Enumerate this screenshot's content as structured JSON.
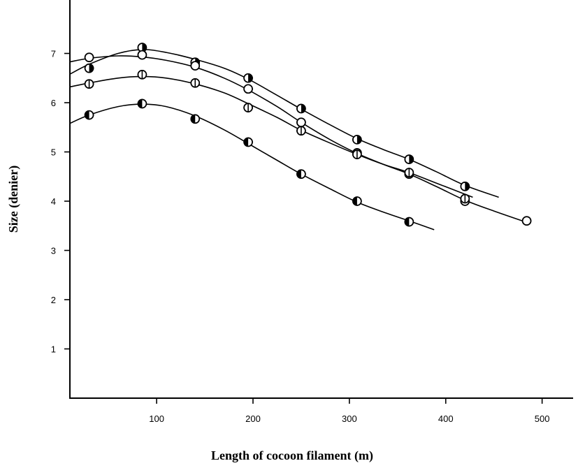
{
  "chart_data": {
    "type": "line",
    "xlabel": "Length of cocoon filament (m)",
    "ylabel": "Size (denier)",
    "xlim": [
      10,
      530
    ],
    "ylim": [
      0,
      8
    ],
    "xticks": [
      100,
      200,
      300,
      400,
      500
    ],
    "yticks": [
      1,
      2,
      3,
      4,
      5,
      6,
      7
    ],
    "grid": false,
    "series": [
      {
        "marker": "right-half-filled",
        "x": [
          30,
          85,
          140,
          195,
          250,
          308,
          362,
          420
        ],
        "y": [
          6.7,
          7.12,
          6.82,
          6.5,
          5.88,
          5.25,
          4.85,
          4.3
        ],
        "curve_x": [
          10,
          30,
          60,
          85,
          110,
          140,
          170,
          195,
          225,
          250,
          280,
          308,
          335,
          362,
          390,
          420,
          455
        ],
        "curve_y": [
          6.58,
          6.78,
          7.0,
          7.08,
          7.02,
          6.88,
          6.7,
          6.48,
          6.15,
          5.87,
          5.55,
          5.27,
          5.05,
          4.85,
          4.6,
          4.32,
          4.08
        ]
      },
      {
        "marker": "open-circle",
        "x": [
          30,
          85,
          140,
          195,
          250,
          308,
          362,
          420,
          484
        ],
        "y": [
          6.92,
          6.97,
          6.75,
          6.28,
          5.6,
          4.98,
          4.55,
          4.0,
          3.6
        ],
        "curve_x": [
          10,
          30,
          60,
          85,
          110,
          140,
          170,
          195,
          225,
          250,
          280,
          308,
          335,
          362,
          390,
          420,
          450,
          487
        ],
        "curve_y": [
          6.83,
          6.9,
          6.95,
          6.93,
          6.86,
          6.72,
          6.5,
          6.26,
          5.92,
          5.6,
          5.25,
          4.97,
          4.75,
          4.55,
          4.3,
          4.02,
          3.8,
          3.55
        ]
      },
      {
        "marker": "vertical-bar-circle",
        "x": [
          30,
          85,
          140,
          195,
          250,
          308,
          362,
          420
        ],
        "y": [
          6.38,
          6.57,
          6.4,
          5.9,
          5.43,
          4.95,
          4.58,
          4.05
        ],
        "curve_x": [
          10,
          30,
          60,
          85,
          110,
          140,
          170,
          195,
          225,
          250,
          280,
          308,
          335,
          362,
          395,
          428
        ],
        "curve_y": [
          6.32,
          6.4,
          6.5,
          6.53,
          6.5,
          6.38,
          6.2,
          5.98,
          5.7,
          5.44,
          5.18,
          4.95,
          4.75,
          4.58,
          4.33,
          4.08
        ]
      },
      {
        "marker": "left-half-filled",
        "x": [
          30,
          85,
          140,
          195,
          250,
          308,
          362
        ],
        "y": [
          5.75,
          5.98,
          5.67,
          5.2,
          4.55,
          4.0,
          3.58
        ],
        "curve_x": [
          10,
          30,
          60,
          85,
          110,
          140,
          170,
          195,
          225,
          250,
          280,
          308,
          335,
          362,
          388
        ],
        "curve_y": [
          5.58,
          5.75,
          5.92,
          5.97,
          5.92,
          5.73,
          5.45,
          5.17,
          4.83,
          4.55,
          4.25,
          3.98,
          3.78,
          3.6,
          3.42
        ]
      }
    ]
  }
}
